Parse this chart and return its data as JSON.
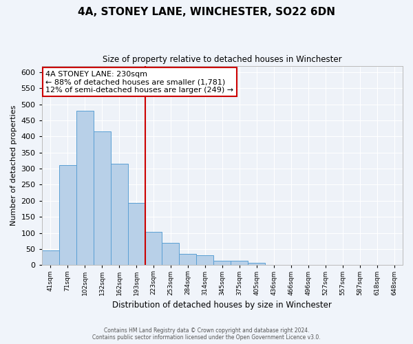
{
  "title": "4A, STONEY LANE, WINCHESTER, SO22 6DN",
  "subtitle": "Size of property relative to detached houses in Winchester",
  "xlabel": "Distribution of detached houses by size in Winchester",
  "ylabel": "Number of detached properties",
  "bar_color": "#b8d0e8",
  "bar_edge_color": "#5a9fd4",
  "background_color": "#eef2f8",
  "grid_color": "#ffffff",
  "bin_labels": [
    "41sqm",
    "71sqm",
    "102sqm",
    "132sqm",
    "162sqm",
    "193sqm",
    "223sqm",
    "253sqm",
    "284sqm",
    "314sqm",
    "345sqm",
    "375sqm",
    "405sqm",
    "436sqm",
    "466sqm",
    "496sqm",
    "527sqm",
    "557sqm",
    "587sqm",
    "618sqm",
    "648sqm"
  ],
  "bar_heights": [
    46,
    310,
    480,
    415,
    315,
    193,
    104,
    69,
    36,
    30,
    14,
    14,
    8,
    1,
    1,
    1,
    1,
    0,
    0,
    0,
    0
  ],
  "vline_x": 6,
  "vline_color": "#cc0000",
  "annotation_line1": "4A STONEY LANE: 230sqm",
  "annotation_line2": "← 88% of detached houses are smaller (1,781)",
  "annotation_line3": "12% of semi-detached houses are larger (249) →",
  "annotation_box_color": "#ffffff",
  "annotation_box_edge": "#cc0000",
  "ylim": [
    0,
    620
  ],
  "yticks": [
    0,
    50,
    100,
    150,
    200,
    250,
    300,
    350,
    400,
    450,
    500,
    550,
    600
  ],
  "footer1": "Contains HM Land Registry data © Crown copyright and database right 2024.",
  "footer2": "Contains public sector information licensed under the Open Government Licence v3.0."
}
